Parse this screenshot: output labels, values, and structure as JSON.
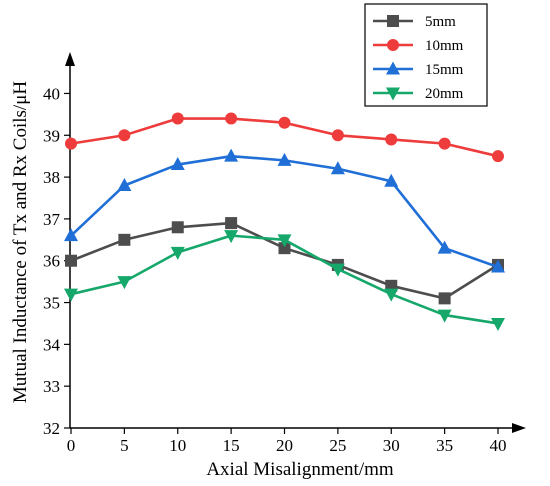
{
  "chart_data": {
    "type": "line",
    "xlabel": "Axial Misalignment/mm",
    "ylabel": "Mutual Inductance of Tx and Rx Coils/μH",
    "x": [
      0,
      5,
      10,
      15,
      20,
      25,
      30,
      35,
      40
    ],
    "xlim": [
      0,
      40
    ],
    "xticks": [
      "0",
      "5",
      "10",
      "15",
      "20",
      "25",
      "30",
      "35",
      "40"
    ],
    "ylim": [
      32,
      40.8
    ],
    "yticks": [
      "32",
      "33",
      "34",
      "35",
      "36",
      "37",
      "38",
      "39",
      "40"
    ],
    "grid": false,
    "legend_position": "top-right",
    "series": [
      {
        "name": "5mm",
        "color": "#4d4d4d",
        "marker": "square",
        "values": [
          36.0,
          36.5,
          36.8,
          36.9,
          36.3,
          35.9,
          35.4,
          35.1,
          35.9
        ]
      },
      {
        "name": "10mm",
        "color": "#ee3b3b",
        "marker": "circle",
        "values": [
          38.8,
          39.0,
          39.4,
          39.4,
          39.3,
          39.0,
          38.9,
          38.8,
          38.5
        ]
      },
      {
        "name": "15mm",
        "color": "#1f6fd6",
        "marker": "triangle-up",
        "values": [
          36.6,
          37.8,
          38.3,
          38.5,
          38.4,
          38.2,
          37.9,
          36.3,
          35.85
        ]
      },
      {
        "name": "20mm",
        "color": "#15a86a",
        "marker": "triangle-down",
        "values": [
          35.2,
          35.5,
          36.2,
          36.6,
          36.5,
          35.8,
          35.2,
          34.7,
          34.5
        ]
      }
    ]
  }
}
